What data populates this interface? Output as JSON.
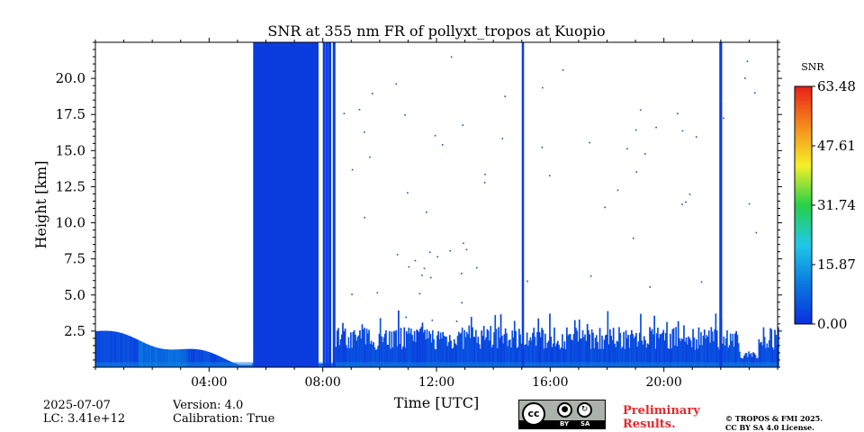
{
  "chart_data": {
    "type": "heatmap",
    "title": "SNR at 355 nm FR of pollyxt_tropos at Kuopio",
    "xlabel": "Time [UTC]",
    "ylabel": "Height [km]",
    "xlim": [
      0,
      24
    ],
    "ylim": [
      0,
      22.5
    ],
    "x_ticks": [
      4,
      8,
      12,
      16,
      20
    ],
    "x_tick_labels": [
      "04:00",
      "08:00",
      "12:00",
      "16:00",
      "20:00"
    ],
    "y_ticks": [
      2.5,
      5.0,
      7.5,
      10.0,
      12.5,
      15.0,
      17.5,
      20.0
    ],
    "y_tick_labels": [
      "2.5",
      "5.0",
      "7.5",
      "10.0",
      "12.5",
      "15.0",
      "17.5",
      "20.0"
    ],
    "colorbar": {
      "label": "SNR",
      "range": [
        0.0,
        63.48
      ],
      "ticks": [
        0.0,
        15.87,
        31.74,
        47.61,
        63.48
      ],
      "tick_labels": [
        "0.00",
        "15.87",
        "31.74",
        "47.61",
        "63.48"
      ],
      "colormap": [
        "#0a2ee0",
        "#0a78e0",
        "#1fc8e8",
        "#27d048",
        "#f5f028",
        "#f58a1c",
        "#e82018"
      ]
    },
    "features": [
      {
        "name": "full-column high signal block",
        "time_start": 5.55,
        "time_end": 7.85,
        "height_top": 22.5,
        "snr": 2
      },
      {
        "name": "vertical signal stripes",
        "times": [
          8.0,
          8.1,
          8.2,
          8.35
        ],
        "height_top": 22.5,
        "snr": 2
      },
      {
        "name": "vertical signal band",
        "time_start": 15.0,
        "time_end": 15.08,
        "height_top": 22.5,
        "snr": 2
      },
      {
        "name": "vertical signal band",
        "time_start": 21.95,
        "time_end": 22.05,
        "height_top": 22.5,
        "snr": 2
      },
      {
        "name": "boundary layer",
        "time_start": 0,
        "time_end": 24,
        "height_top_range": [
          0.2,
          2.6
        ],
        "snr": 2
      }
    ]
  },
  "footer": {
    "date": "2025-07-07",
    "lc": "LC: 3.41e+12",
    "version": "Version: 4.0",
    "calibration": "Calibration: True",
    "preliminary_line1": "Preliminary",
    "preliminary_line2": "Results.",
    "copyright_line1": "© TROPOS & FMI 2025.",
    "copyright_line2": "CC BY SA 4.0 License."
  },
  "license_badge": {
    "main": "cc",
    "by": "BY",
    "sa": "SA"
  }
}
